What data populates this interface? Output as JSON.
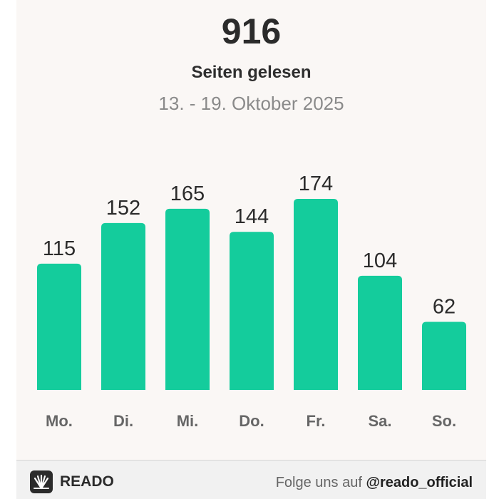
{
  "header": {
    "total": "916",
    "subtitle": "Seiten gelesen",
    "daterange": "13. - 19. Oktober 2025"
  },
  "footer": {
    "brand": "READO",
    "follow_text": "Folge uns auf",
    "handle": "@reado_official"
  },
  "colors": {
    "bar": "#14cc9c",
    "label": "#2b2b2b",
    "tick": "#666666",
    "background": "#faf7f5"
  },
  "icons": {
    "logo": "reado-logo-icon"
  },
  "chart_data": {
    "type": "bar",
    "categories": [
      "Mo.",
      "Di.",
      "Mi.",
      "Do.",
      "Fr.",
      "Sa.",
      "So."
    ],
    "values": [
      115,
      152,
      165,
      144,
      174,
      104,
      62
    ],
    "title": "Seiten gelesen",
    "xlabel": "",
    "ylabel": "",
    "ylim": [
      0,
      174
    ],
    "grid": false,
    "legend": "none"
  }
}
